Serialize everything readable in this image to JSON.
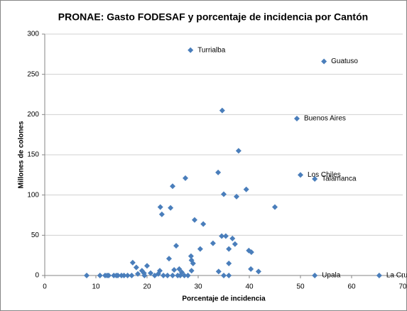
{
  "chart_data": {
    "type": "scatter",
    "title": "PRONAE: Gasto FODESAF y porcentaje de incidencia por Cantón",
    "x_label": "Porcentaje de incidencia",
    "y_label": "Millones de colones",
    "color": "#4a7ebb",
    "xlim": [
      0,
      70
    ],
    "xticks": [
      0,
      10,
      20,
      30,
      40,
      50,
      60,
      70
    ],
    "ylim": [
      0,
      300
    ],
    "yticks": [
      0,
      50,
      100,
      150,
      200,
      250,
      300
    ],
    "grid": true,
    "x": [
      28.5,
      54.6,
      49.3,
      50,
      52.8,
      52.8,
      65.4,
      34.7,
      37.9,
      35,
      33.9,
      27.5,
      25,
      39.4,
      37.5,
      45,
      22.6,
      24.6,
      22.9,
      29.3,
      31,
      34.6,
      35.4,
      36.7,
      32.9,
      37.2,
      25.7,
      36,
      30.4,
      39.9,
      40.4,
      28.6,
      24.3,
      28.7,
      17.2,
      29,
      36,
      20,
      17.9,
      26.3,
      40.3,
      25.3,
      28.7,
      19,
      22.5,
      34,
      41.8,
      26.8,
      19.4,
      20.7,
      22.2,
      18.2,
      8.2,
      10.8,
      11.8,
      12.2,
      12.5,
      13.5,
      14,
      14.3,
      15,
      15.5,
      16.2,
      17,
      19.5,
      21.5,
      23.2,
      24,
      25,
      26,
      26.5,
      27.3,
      28,
      35,
      36
    ],
    "values": [
      280,
      266,
      195,
      125,
      120,
      0,
      0,
      205,
      155,
      101,
      128,
      121,
      111,
      107,
      98,
      85,
      85,
      84,
      76,
      69,
      64,
      49,
      49,
      46,
      40,
      39,
      37,
      33,
      33,
      31,
      29,
      24,
      21,
      19,
      16,
      15,
      15,
      12,
      10,
      8,
      8,
      7,
      6,
      6,
      6,
      5,
      5,
      4,
      3,
      3,
      2,
      2,
      0,
      0,
      0,
      0,
      0,
      0,
      0,
      0,
      0,
      0,
      0,
      0,
      0,
      0,
      0,
      0,
      0,
      0,
      0,
      0,
      0,
      0,
      0
    ],
    "point_labels": [
      "Turrialba",
      "Guatuso",
      "Buenos Aires",
      "Los Chiles",
      "Talamanca",
      "Upala",
      "La Cruz",
      null,
      null,
      null,
      null,
      null,
      null,
      null,
      null,
      null,
      null,
      null,
      null,
      null,
      null,
      null,
      null,
      null,
      null,
      null,
      null,
      null,
      null,
      null,
      null,
      null,
      null,
      null,
      null,
      null,
      null,
      null,
      null,
      null,
      null,
      null,
      null,
      null,
      null,
      null,
      null,
      null,
      null,
      null,
      null,
      null,
      null,
      null,
      null,
      null,
      null,
      null,
      null,
      null,
      null,
      null,
      null,
      null,
      null,
      null,
      null,
      null,
      null,
      null,
      null,
      null,
      null,
      null,
      null
    ]
  }
}
